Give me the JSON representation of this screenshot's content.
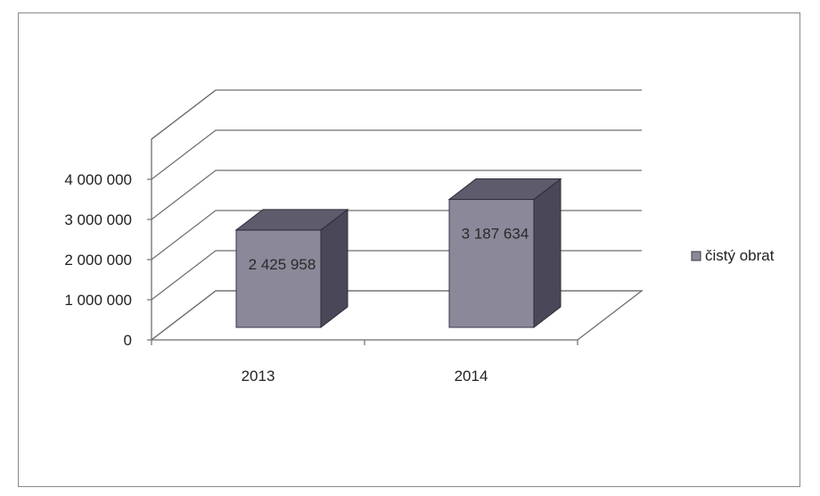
{
  "chart_data": {
    "type": "bar",
    "categories": [
      "2013",
      "2014"
    ],
    "series": [
      {
        "name": "čistý obrat",
        "values": [
          2425958,
          3187634
        ],
        "color": "#8a8899"
      }
    ],
    "data_labels": [
      "2 425 958",
      "3 187 634"
    ],
    "y_ticks": [
      0,
      1000000,
      2000000,
      3000000,
      4000000
    ],
    "y_tick_labels": [
      "0",
      "1 000 000",
      "2 000 000",
      "3 000 000",
      "4 000 000"
    ],
    "ylim": [
      0,
      4000000
    ],
    "grid": true,
    "legend_position": "right",
    "three_d": true,
    "colors": {
      "bar_front": "#8a8899",
      "bar_side": "#4a4858",
      "bar_top": "#5e5c6c"
    }
  }
}
